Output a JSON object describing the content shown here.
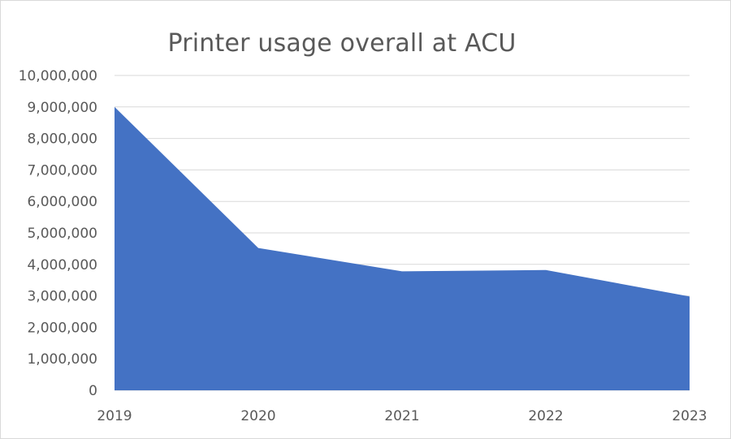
{
  "chart_data": {
    "type": "area",
    "title": "Printer usage overall at ACU",
    "categories": [
      "2019",
      "2020",
      "2021",
      "2022",
      "2023"
    ],
    "series": [
      {
        "values": [
          9000000,
          4520000,
          3780000,
          3820000,
          2980000
        ]
      }
    ],
    "ylim": [
      0,
      10000000
    ],
    "yticks": [
      0,
      1000000,
      2000000,
      3000000,
      4000000,
      5000000,
      6000000,
      7000000,
      8000000,
      9000000,
      10000000
    ],
    "ytick_labels": [
      "0",
      "1,000,000",
      "2,000,000",
      "3,000,000",
      "4,000,000",
      "5,000,000",
      "6,000,000",
      "7,000,000",
      "8,000,000",
      "9,000,000",
      "10,000,000"
    ],
    "grid": true,
    "legend": "none",
    "colors": {
      "fill": "#4472C4",
      "gridline": "#d9d9d9",
      "text": "#595959"
    }
  }
}
